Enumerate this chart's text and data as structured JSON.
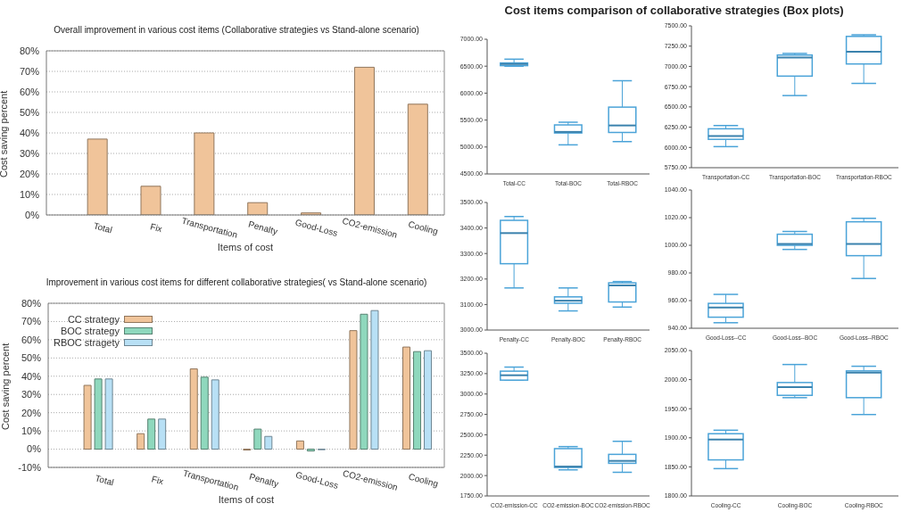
{
  "chart_data": [
    {
      "type": "bar",
      "title": "Overall improvement in various cost items (Collaborative strategies vs Stand-alone scenario)",
      "xlabel": "Items of cost",
      "ylabel": "Cost saving percent",
      "categories": [
        "Total",
        "Fix",
        "Transportation",
        "Penalty",
        "Good-Loss",
        "CO2-emission",
        "Cooling"
      ],
      "values": [
        37,
        14,
        40,
        6,
        1,
        72,
        54
      ],
      "color": "#f0c49a",
      "ylim": [
        0,
        80
      ],
      "yticks": [
        {
          "value": 0,
          "label": "0%"
        },
        {
          "value": 10,
          "label": "10%"
        },
        {
          "value": 20,
          "label": "20%"
        },
        {
          "value": 30,
          "label": "30%"
        },
        {
          "value": 40,
          "label": "40%"
        },
        {
          "value": 50,
          "label": "50%"
        },
        {
          "value": 60,
          "label": "60%"
        },
        {
          "value": 70,
          "label": "70%"
        },
        {
          "value": 80,
          "label": "80%"
        }
      ],
      "grid": "y"
    },
    {
      "type": "bar",
      "title": "Improvement in various cost items for different collaborative strategies( vs Stand-alone scenario)",
      "xlabel": "Items of cost",
      "ylabel": "Cost saving percent",
      "categories": [
        "Total",
        "Fix",
        "Transportation",
        "Penalty",
        "Good-Loss",
        "CO2-emission",
        "Cooling"
      ],
      "series": [
        {
          "name": "CC strategy",
          "color": "#f0c49a",
          "values": [
            35,
            8.5,
            44,
            -0.5,
            4.5,
            65,
            56
          ]
        },
        {
          "name": "BOC strategy",
          "color": "#8fd8bd",
          "values": [
            38.5,
            16.5,
            39.5,
            11,
            -1,
            74,
            53.5
          ]
        },
        {
          "name": "RBOC stragety",
          "color": "#b8e0f5",
          "values": [
            38.5,
            16.5,
            38,
            7,
            -0.3,
            76,
            54
          ]
        }
      ],
      "ylim": [
        -10,
        80
      ],
      "yticks": [
        {
          "value": -10,
          "label": "-10%"
        },
        {
          "value": 0,
          "label": "0%"
        },
        {
          "value": 10,
          "label": "10%"
        },
        {
          "value": 20,
          "label": "20%"
        },
        {
          "value": 30,
          "label": "30%"
        },
        {
          "value": 40,
          "label": "40%"
        },
        {
          "value": 50,
          "label": "50%"
        },
        {
          "value": 60,
          "label": "60%"
        },
        {
          "value": 70,
          "label": "70%"
        },
        {
          "value": 80,
          "label": "80%"
        }
      ],
      "grid": "y",
      "legend": "top left"
    },
    {
      "type": "box",
      "title": "Cost items comparison of collaborative strategies (Box plots)",
      "categories": [
        "Total-CC",
        "Total-BOC",
        "Total-RBOC"
      ],
      "color": "#4aa3d8",
      "boxes": [
        {
          "low": 6500,
          "q1": 6510,
          "median": 6540,
          "q3": 6560,
          "high": 6630
        },
        {
          "low": 5040,
          "q1": 5260,
          "median": 5280,
          "q3": 5410,
          "high": 5460
        },
        {
          "low": 5100,
          "q1": 5270,
          "median": 5400,
          "q3": 5740,
          "high": 6230
        }
      ],
      "ylim": [
        4500,
        7000
      ],
      "yticks": [
        {
          "value": 4500,
          "label": "4500.00"
        },
        {
          "value": 5000,
          "label": "5000.00"
        },
        {
          "value": 5500,
          "label": "5500.00"
        },
        {
          "value": 6000,
          "label": "6000.00"
        },
        {
          "value": 6500,
          "label": "6500.00"
        },
        {
          "value": 7000,
          "label": "7000.00"
        }
      ]
    },
    {
      "type": "box",
      "categories": [
        "Transportation-CC",
        "Transportation-BOC",
        "Transportation-RBOC"
      ],
      "color": "#4aa3d8",
      "boxes": [
        {
          "low": 6010,
          "q1": 6100,
          "median": 6140,
          "q3": 6230,
          "high": 6270
        },
        {
          "low": 6640,
          "q1": 6880,
          "median": 7110,
          "q3": 7140,
          "high": 7160
        },
        {
          "low": 6790,
          "q1": 7030,
          "median": 7180,
          "q3": 7370,
          "high": 7390
        }
      ],
      "ylim": [
        5750,
        7500
      ],
      "yticks": [
        {
          "value": 5750,
          "label": "5750.00"
        },
        {
          "value": 6000,
          "label": "6000.00"
        },
        {
          "value": 6250,
          "label": "6250.00"
        },
        {
          "value": 6500,
          "label": "6500.00"
        },
        {
          "value": 6750,
          "label": "6750.00"
        },
        {
          "value": 7000,
          "label": "7000.00"
        },
        {
          "value": 7250,
          "label": "7250.00"
        },
        {
          "value": 7500,
          "label": "7500.00"
        }
      ]
    },
    {
      "type": "box",
      "categories": [
        "Penalty-CC",
        "Penalty-BOC",
        "Penalty-RBOC"
      ],
      "color": "#4aa3d8",
      "boxes": [
        {
          "low": 3165,
          "q1": 3260,
          "median": 3380,
          "q3": 3430,
          "high": 3445
        },
        {
          "low": 3075,
          "q1": 3105,
          "median": 3115,
          "q3": 3130,
          "high": 3165
        },
        {
          "low": 3090,
          "q1": 3110,
          "median": 3175,
          "q3": 3185,
          "high": 3190
        }
      ],
      "ylim": [
        3000,
        3500
      ],
      "yticks": [
        {
          "value": 3000,
          "label": "3000.00"
        },
        {
          "value": 3100,
          "label": "3100.00"
        },
        {
          "value": 3200,
          "label": "3200.00"
        },
        {
          "value": 3300,
          "label": "3300.00"
        },
        {
          "value": 3400,
          "label": "3400.00"
        },
        {
          "value": 3500,
          "label": "3500.00"
        }
      ]
    },
    {
      "type": "box",
      "categories": [
        "Good-Loss--CC",
        "Good-Loss--BOC",
        "Good-Loss--RBOC"
      ],
      "color": "#4aa3d8",
      "boxes": [
        {
          "low": 944,
          "q1": 948,
          "median": 955,
          "q3": 958,
          "high": 964.5
        },
        {
          "low": 997,
          "q1": 1000,
          "median": 1001,
          "q3": 1008,
          "high": 1010
        },
        {
          "low": 976,
          "q1": 992.5,
          "median": 1001,
          "q3": 1017,
          "high": 1019.5
        }
      ],
      "ylim": [
        940,
        1040
      ],
      "yticks": [
        {
          "value": 940,
          "label": "940.00"
        },
        {
          "value": 960,
          "label": "960.00"
        },
        {
          "value": 980,
          "label": "980.00"
        },
        {
          "value": 1000,
          "label": "1000.00"
        },
        {
          "value": 1020,
          "label": "1020.00"
        },
        {
          "value": 1040,
          "label": "1040.00"
        }
      ]
    },
    {
      "type": "box",
      "categories": [
        "CO2-emission-CC",
        "CO2-emission-BOC",
        "CO2-emission-RBOC"
      ],
      "color": "#4aa3d8",
      "boxes": [
        {
          "low": 3170,
          "q1": 3170,
          "median": 3230,
          "q3": 3280,
          "high": 3330
        },
        {
          "low": 2070,
          "q1": 2100,
          "median": 2110,
          "q3": 2330,
          "high": 2355
        },
        {
          "low": 2040,
          "q1": 2150,
          "median": 2180,
          "q3": 2260,
          "high": 2420
        }
      ],
      "ylim": [
        1750,
        3500
      ],
      "yticks": [
        {
          "value": 1750,
          "label": "1750.00"
        },
        {
          "value": 2000,
          "label": "2000.00"
        },
        {
          "value": 2250,
          "label": "2250.00"
        },
        {
          "value": 2500,
          "label": "2500.00"
        },
        {
          "value": 2750,
          "label": "2750.00"
        },
        {
          "value": 3000,
          "label": "3000.00"
        },
        {
          "value": 3250,
          "label": "3250.00"
        },
        {
          "value": 3500,
          "label": "3500.00"
        }
      ]
    },
    {
      "type": "box",
      "categories": [
        "Cooling-CC",
        "Cooling-BOC",
        "Cooling-RBOC"
      ],
      "color": "#4aa3d8",
      "boxes": [
        {
          "low": 1847,
          "q1": 1862,
          "median": 1897,
          "q3": 1907,
          "high": 1913
        },
        {
          "low": 1969,
          "q1": 1973,
          "median": 1987,
          "q3": 1995,
          "high": 2026
        },
        {
          "low": 1940,
          "q1": 1969,
          "median": 2012,
          "q3": 2015,
          "high": 2023
        }
      ],
      "ylim": [
        1800,
        2050
      ],
      "yticks": [
        {
          "value": 1800,
          "label": "1800.00"
        },
        {
          "value": 1850,
          "label": "1850.00"
        },
        {
          "value": 1900,
          "label": "1900.00"
        },
        {
          "value": 1950,
          "label": "1950.00"
        },
        {
          "value": 2000,
          "label": "2000.00"
        },
        {
          "value": 2050,
          "label": "2050.00"
        }
      ]
    }
  ]
}
